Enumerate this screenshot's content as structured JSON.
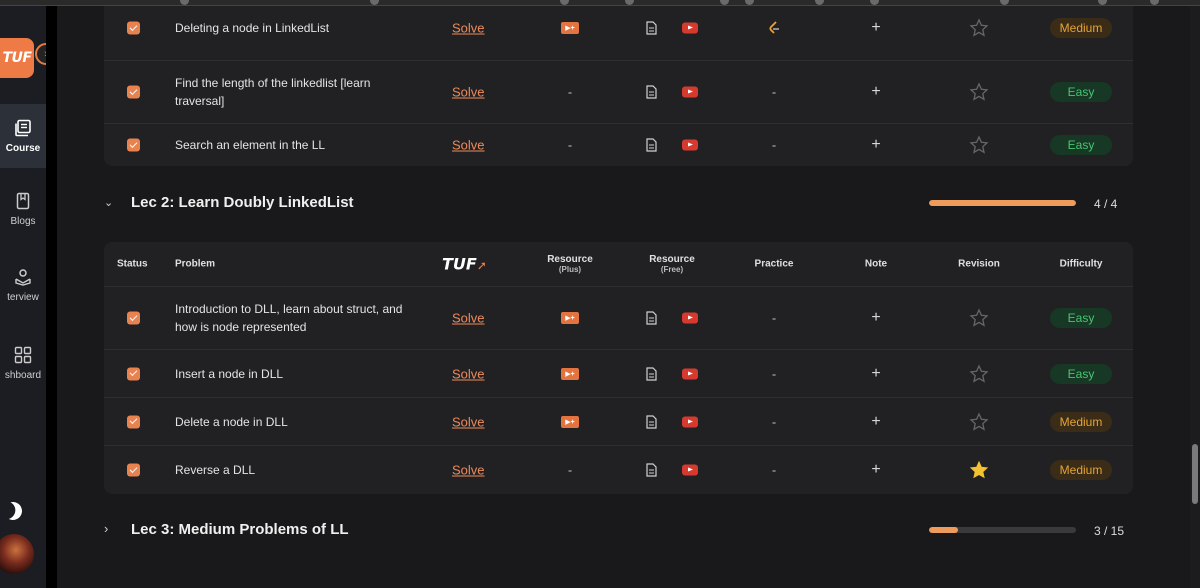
{
  "sidebar": {
    "logo_text": "TUF",
    "items": [
      {
        "label": "Course",
        "icon": "course-icon"
      },
      {
        "label": "Blogs",
        "icon": "bookmark-icon"
      },
      {
        "label": "terview",
        "icon": "interview-icon"
      },
      {
        "label": "shboard",
        "icon": "dashboard-icon"
      }
    ]
  },
  "table_header": {
    "status": "Status",
    "problem": "Problem",
    "tuf_logo": "TUF",
    "resource_plus": "Resource",
    "resource_plus_sub": "(Plus)",
    "resource_free": "Resource",
    "resource_free_sub": "(Free)",
    "practice": "Practice",
    "note": "Note",
    "revision": "Revision",
    "difficulty": "Difficulty"
  },
  "solve_label": "Solve",
  "dash": "-",
  "note_symbol": "+",
  "lec1_rows": [
    {
      "problem": "Deleting a node in LinkedList",
      "difficulty": "Medium",
      "resource_plus": true,
      "practice": "logo"
    },
    {
      "problem": "Find the length of the linkedlist [learn traversal]",
      "difficulty": "Easy",
      "resource_plus": false,
      "practice": "-"
    },
    {
      "problem": "Search an element in the LL",
      "difficulty": "Easy",
      "resource_plus": false,
      "practice": "-"
    }
  ],
  "lectures": [
    {
      "title": "Lec 2: Learn Doubly LinkedList",
      "count": "4 / 4",
      "progress": 1.0,
      "expanded": true
    },
    {
      "title": "Lec 3: Medium Problems of LL",
      "count": "3 / 15",
      "progress": 0.2,
      "expanded": false
    }
  ],
  "lec2_rows": [
    {
      "problem": "Introduction to DLL, learn about struct, and how is node represented",
      "difficulty": "Easy",
      "resource_plus": true,
      "practice": "-",
      "starred": false
    },
    {
      "problem": "Insert a node in DLL",
      "difficulty": "Easy",
      "resource_plus": true,
      "practice": "-",
      "starred": false
    },
    {
      "problem": "Delete a node in DLL",
      "difficulty": "Medium",
      "resource_plus": true,
      "practice": "-",
      "starred": false
    },
    {
      "problem": "Reverse a DLL",
      "difficulty": "Medium",
      "resource_plus": false,
      "practice": "-",
      "starred": true
    }
  ],
  "colors": {
    "accent": "#ee7a45",
    "easy": "#47c572",
    "medium": "#e5a437",
    "star": "#f2c230"
  }
}
